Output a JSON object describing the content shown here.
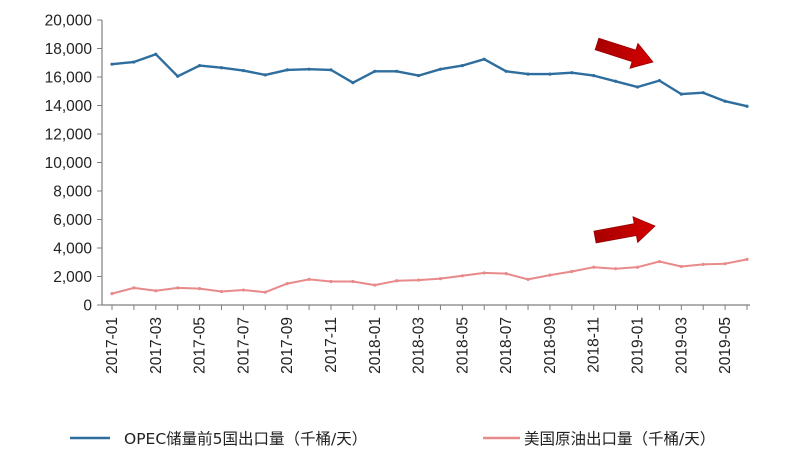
{
  "chart_data": {
    "type": "line",
    "title": "",
    "xlabel": "",
    "ylabel": "",
    "ylim": [
      0,
      20000
    ],
    "yticks": [
      "0",
      "2,000",
      "4,000",
      "6,000",
      "8,000",
      "10,000",
      "12,000",
      "14,000",
      "16,000",
      "18,000",
      "20,000"
    ],
    "ytick_values": [
      0,
      2000,
      4000,
      6000,
      8000,
      10000,
      12000,
      14000,
      16000,
      18000,
      20000
    ],
    "x": [
      "2017-01",
      "2017-02",
      "2017-03",
      "2017-04",
      "2017-05",
      "2017-06",
      "2017-07",
      "2017-08",
      "2017-09",
      "2017-10",
      "2017-11",
      "2017-12",
      "2018-01",
      "2018-02",
      "2018-03",
      "2018-04",
      "2018-05",
      "2018-06",
      "2018-07",
      "2018-08",
      "2018-09",
      "2018-10",
      "2018-11",
      "2018-12",
      "2019-01",
      "2019-02",
      "2019-03",
      "2019-04",
      "2019-05",
      "2019-06"
    ],
    "xtick_labels": [
      "2017-01",
      "2017-03",
      "2017-05",
      "2017-07",
      "2017-09",
      "2017-11",
      "2018-01",
      "2018-03",
      "2018-05",
      "2018-07",
      "2018-09",
      "2018-11",
      "2019-01",
      "2019-03",
      "2019-05"
    ],
    "grid": false,
    "legend_position": "bottom",
    "series": [
      {
        "name": "OPEC储量前5国出口量（千桶/天）",
        "color": "#2e6e9e",
        "values": [
          16900,
          17050,
          17600,
          16050,
          16800,
          16650,
          16450,
          16150,
          16500,
          16550,
          16500,
          15600,
          16400,
          16400,
          16100,
          16550,
          16800,
          17250,
          16400,
          16200,
          16200,
          16300,
          16100,
          15700,
          15300,
          15750,
          14800,
          14900,
          14300,
          13950
        ]
      },
      {
        "name": "美国原油出口量（千桶/天）",
        "color": "#e88a8a",
        "values": [
          800,
          1200,
          1000,
          1200,
          1150,
          950,
          1050,
          900,
          1500,
          1800,
          1650,
          1650,
          1400,
          1700,
          1750,
          1850,
          2050,
          2250,
          2200,
          1800,
          2100,
          2350,
          2650,
          2550,
          2650,
          3050,
          2700,
          2850,
          2900,
          3200
        ]
      }
    ],
    "annotations": [
      {
        "kind": "arrow",
        "icon": "red-arrow-icon",
        "color": "#c00000",
        "near_series": 0
      },
      {
        "kind": "arrow",
        "icon": "red-arrow-icon",
        "color": "#c00000",
        "near_series": 1
      }
    ]
  }
}
